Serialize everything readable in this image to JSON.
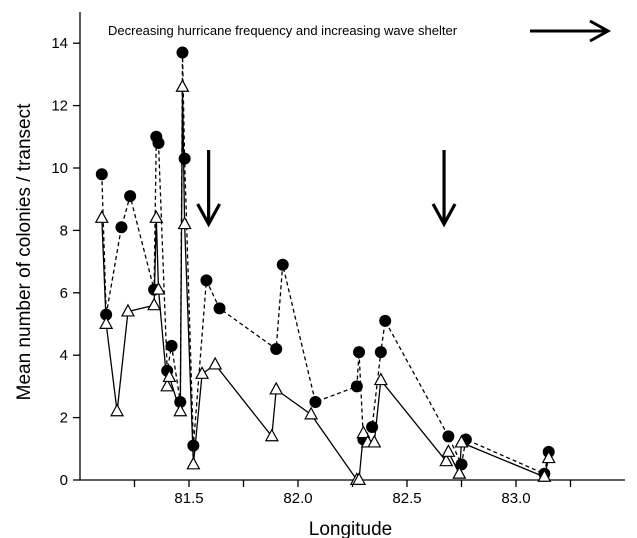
{
  "chart_data": {
    "type": "line",
    "title": "",
    "xlabel": "Longitude",
    "ylabel": "Mean number of colonies / transect",
    "xlim": [
      81.0,
      83.5
    ],
    "ylim": [
      0,
      15
    ],
    "xticks": [
      81.5,
      82.0,
      82.5,
      83.0
    ],
    "xtick_labels": [
      "81.5",
      "82.0",
      "82.5",
      "83.0"
    ],
    "yticks": [
      0,
      2,
      4,
      6,
      8,
      10,
      12,
      14
    ],
    "ytick_labels": [
      "0",
      "2",
      "4",
      "6",
      "8",
      "10",
      "12",
      "14"
    ],
    "grid": false,
    "legend": "none",
    "annotation": "Decreasing hurricane frequency and increasing wave shelter",
    "marker_arrows_x": [
      81.59,
      82.67
    ],
    "series": [
      {
        "marker": "filled-circle",
        "line_style": "dashed",
        "x": [
          81.1,
          81.12,
          81.19,
          81.23,
          81.34,
          81.35,
          81.36,
          81.4,
          81.42,
          81.46,
          81.47,
          81.48,
          81.52,
          81.58,
          81.64,
          81.9,
          81.93,
          82.08,
          82.27,
          82.28,
          82.3,
          82.34,
          82.38,
          82.4,
          82.69,
          82.75,
          82.77,
          83.13,
          83.15
        ],
        "y": [
          9.8,
          5.3,
          8.1,
          9.1,
          6.1,
          11.0,
          10.8,
          3.5,
          4.3,
          2.5,
          13.7,
          10.3,
          1.1,
          6.4,
          5.5,
          4.2,
          6.9,
          2.5,
          3.0,
          4.1,
          1.3,
          1.7,
          4.1,
          5.1,
          1.4,
          0.5,
          1.3,
          0.2,
          0.9
        ]
      },
      {
        "marker": "open-triangle",
        "line_style": "solid",
        "x": [
          81.1,
          81.12,
          81.17,
          81.22,
          81.34,
          81.35,
          81.36,
          81.4,
          81.41,
          81.46,
          81.47,
          81.48,
          81.52,
          81.56,
          81.62,
          81.88,
          81.9,
          82.06,
          82.27,
          82.28,
          82.3,
          82.32,
          82.35,
          82.38,
          82.68,
          82.69,
          82.74,
          82.75,
          83.13,
          83.15
        ],
        "y": [
          8.4,
          5.0,
          2.2,
          5.4,
          5.6,
          8.4,
          6.1,
          3.0,
          3.3,
          2.2,
          12.6,
          8.2,
          0.5,
          3.4,
          3.7,
          1.4,
          2.9,
          2.1,
          0.0,
          0.0,
          1.5,
          1.2,
          1.2,
          3.2,
          0.6,
          0.9,
          0.2,
          1.2,
          0.1,
          0.7
        ]
      }
    ]
  }
}
